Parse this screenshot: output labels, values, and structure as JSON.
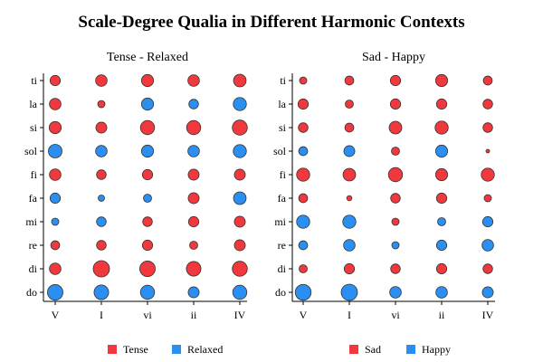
{
  "colors": {
    "tense": "#F0383D",
    "relaxed": "#2A8FF0",
    "sad": "#F0383D",
    "happy": "#2A8FF0"
  },
  "chart_data": {
    "type": "scatter",
    "title": "Scale-Degree Qualia in Different Harmonic Contexts",
    "x_categories": [
      "V",
      "I",
      "vi",
      "ii",
      "IV"
    ],
    "y_categories": [
      "do",
      "di",
      "re",
      "mi",
      "fa",
      "fi",
      "sol",
      "si",
      "la",
      "ti"
    ],
    "value_note": "",
    "panels": [
      {
        "title": "Tense - Relaxed",
        "legend": [
          {
            "label": "Tense",
            "color_key": "tense"
          },
          {
            "label": "Relaxed",
            "color_key": "relaxed"
          }
        ],
        "series": {
          "V": {
            "do": -0.9,
            "di": 0.5,
            "re": 0.3,
            "mi": -0.2,
            "fa": -0.4,
            "fi": 0.5,
            "sol": -0.7,
            "si": 0.55,
            "la": 0.5,
            "ti": 0.4
          },
          "I": {
            "do": -0.8,
            "di": 1.0,
            "re": 0.35,
            "mi": -0.35,
            "fa": -0.15,
            "fi": 0.35,
            "sol": -0.5,
            "si": 0.45,
            "la": 0.2,
            "ti": 0.5
          },
          "vi": {
            "do": -0.75,
            "di": 0.9,
            "re": 0.4,
            "mi": 0.35,
            "fa": -0.25,
            "fi": 0.4,
            "sol": -0.55,
            "si": 0.75,
            "la": -0.55,
            "ti": 0.55
          },
          "ii": {
            "do": -0.45,
            "di": 0.8,
            "re": 0.25,
            "mi": 0.4,
            "fa": 0.45,
            "fi": 0.45,
            "sol": -0.5,
            "si": 0.75,
            "la": -0.35,
            "ti": 0.5
          },
          "IV": {
            "do": -0.75,
            "di": 0.85,
            "re": 0.45,
            "mi": 0.45,
            "fa": -0.6,
            "fi": 0.45,
            "sol": -0.65,
            "si": 0.85,
            "la": -0.65,
            "ti": 0.6
          }
        }
      },
      {
        "title": "Sad - Happy",
        "legend": [
          {
            "label": "Sad",
            "color_key": "sad"
          },
          {
            "label": "Happy",
            "color_key": "happy"
          }
        ],
        "series": {
          "V": {
            "do": -0.95,
            "di": 0.25,
            "re": -0.3,
            "mi": -0.65,
            "fa": 0.3,
            "fi": 0.65,
            "sol": -0.3,
            "si": 0.35,
            "la": 0.4,
            "ti": 0.2
          },
          "I": {
            "do": -1.0,
            "di": 0.4,
            "re": -0.5,
            "mi": -0.65,
            "fa": 0.1,
            "fi": 0.6,
            "sol": -0.45,
            "si": 0.3,
            "la": 0.25,
            "ti": 0.3
          },
          "vi": {
            "do": -0.5,
            "di": 0.35,
            "re": -0.2,
            "mi": 0.2,
            "fa": 0.35,
            "fi": 0.75,
            "sol": 0.25,
            "si": 0.6,
            "la": 0.4,
            "ti": 0.4
          },
          "ii": {
            "do": -0.5,
            "di": 0.4,
            "re": -0.4,
            "mi": -0.25,
            "fa": 0.4,
            "fi": 0.55,
            "sol": -0.55,
            "si": 0.65,
            "la": 0.4,
            "ti": 0.55
          },
          "IV": {
            "do": -0.45,
            "di": 0.35,
            "re": -0.5,
            "mi": -0.4,
            "fa": 0.2,
            "fi": 0.65,
            "sol": 0.05,
            "si": 0.35,
            "la": 0.35,
            "ti": 0.3
          }
        }
      }
    ]
  }
}
